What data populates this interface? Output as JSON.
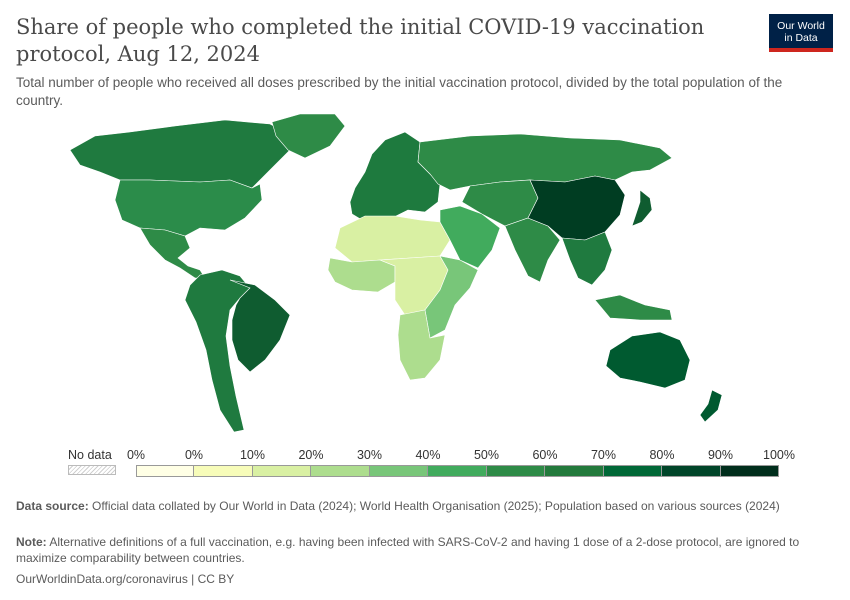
{
  "header": {
    "title": "Share of people who completed the initial COVID-19 vaccination protocol, Aug 12, 2024",
    "subtitle": "Total number of people who received all doses prescribed by the initial vaccination protocol, divided by the total population of the country.",
    "logo_line1": "Our World",
    "logo_line2": "in Data"
  },
  "legend": {
    "nodata_label": "No data",
    "ticks": [
      "0%",
      "0%",
      "10%",
      "20%",
      "30%",
      "40%",
      "50%",
      "60%",
      "70%",
      "80%",
      "90%",
      "100%"
    ],
    "bins": [
      {
        "color": "#ffffe5"
      },
      {
        "color": "#f7fcb9"
      },
      {
        "color": "#d9f0a3"
      },
      {
        "color": "#addd8e"
      },
      {
        "color": "#78c679"
      },
      {
        "color": "#41ab5d"
      },
      {
        "color": "#2e8b47"
      },
      {
        "color": "#237a3c"
      },
      {
        "color": "#006837"
      },
      {
        "color": "#004529"
      },
      {
        "color": "#002e1c"
      }
    ]
  },
  "footer": {
    "source_label": "Data source:",
    "source_text": "Official data collated by Our World in Data (2024); World Health Organisation (2025); Population based on various sources (2024)",
    "note_label": "Note:",
    "note_text": "Alternative definitions of a full vaccination, e.g. having been infected with SARS-CoV-2 and having 1 dose of a 2-dose protocol, are ignored to maximize comparability between countries.",
    "credit": "OurWorldinData.org/coronavirus | CC BY"
  },
  "map_regions": [
    {
      "region": "canada-alaska",
      "color": "#1f7a3f"
    },
    {
      "region": "usa",
      "color": "#2b8c4a"
    },
    {
      "region": "greenland",
      "color": "#2e8b47"
    },
    {
      "region": "mexico-central-america",
      "color": "#2e8b47"
    },
    {
      "region": "south-america",
      "color": "#1f7a3f"
    },
    {
      "region": "brazil",
      "color": "#0f5c30"
    },
    {
      "region": "europe",
      "color": "#1e7a3e"
    },
    {
      "region": "russia",
      "color": "#2e8b47"
    },
    {
      "region": "north-africa",
      "color": "#d9f0a3"
    },
    {
      "region": "west-africa",
      "color": "#addd8e"
    },
    {
      "region": "central-africa",
      "color": "#d9f0a3"
    },
    {
      "region": "east-africa",
      "color": "#78c679"
    },
    {
      "region": "southern-africa",
      "color": "#addd8e"
    },
    {
      "region": "middle-east",
      "color": "#41ab5d"
    },
    {
      "region": "central-asia",
      "color": "#2e8b47"
    },
    {
      "region": "india",
      "color": "#2e8b47"
    },
    {
      "region": "china",
      "color": "#003d22"
    },
    {
      "region": "southeast-asia",
      "color": "#1f7a3f"
    },
    {
      "region": "japan",
      "color": "#0f5c30"
    },
    {
      "region": "indonesia",
      "color": "#2e8b47"
    },
    {
      "region": "australia",
      "color": "#005a30"
    },
    {
      "region": "new-zealand",
      "color": "#005a30"
    }
  ]
}
